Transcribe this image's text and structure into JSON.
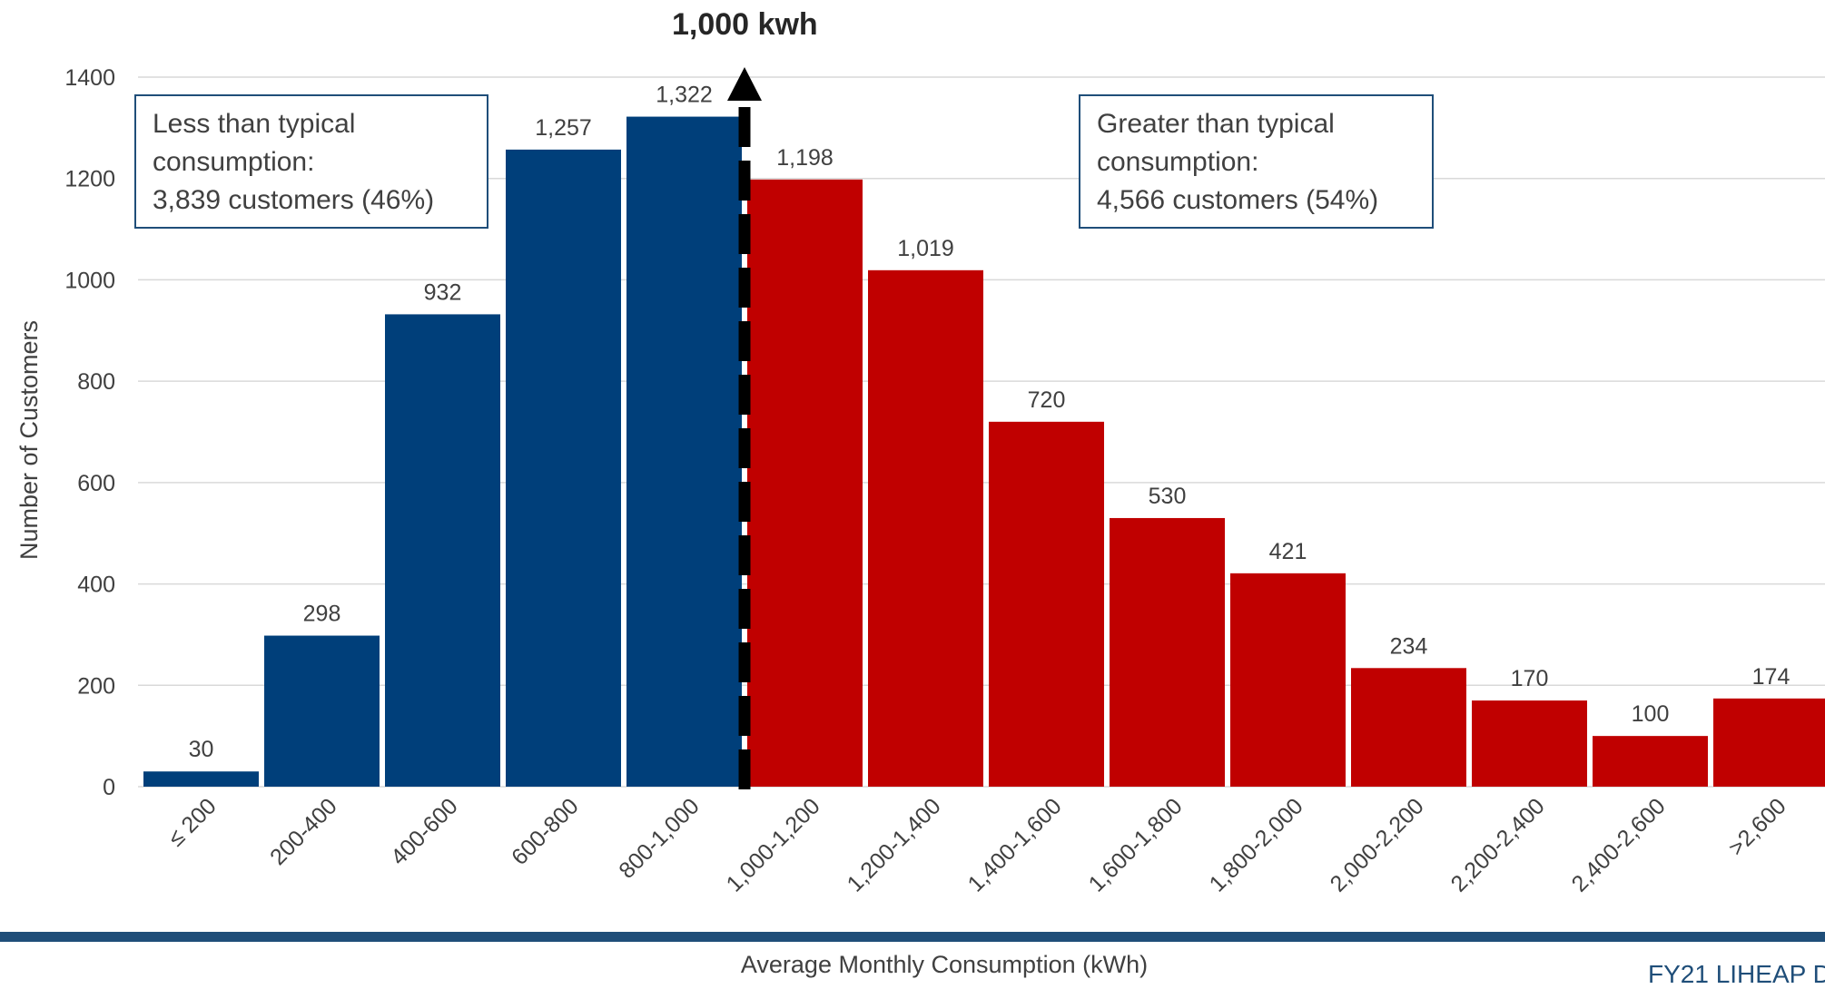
{
  "chart_data": {
    "type": "bar",
    "title": "",
    "xlabel": "Average Monthly Consumption (kWh)",
    "ylabel": "Number of Customers",
    "ylim": [
      0,
      1400
    ],
    "yticks": [
      "0",
      "200",
      "400",
      "600",
      "800",
      "1000",
      "1200",
      "1400"
    ],
    "grid": true,
    "categories": [
      "≤ 200",
      "200-400",
      "400-600",
      "600-800",
      "800-1,000",
      "1,000-1,200",
      "1,200-1,400",
      "1,400-1,600",
      "1,600-1,800",
      "1,800-2,000",
      "2,000-2,200",
      "2,200-2,400",
      "2,400-2,600",
      ">2,600"
    ],
    "values": [
      30,
      298,
      932,
      1257,
      1322,
      1198,
      1019,
      720,
      530,
      421,
      234,
      170,
      100,
      174
    ],
    "data_labels": [
      "30",
      "298",
      "932",
      "1,257",
      "1,322",
      "1,198",
      "1,019",
      "720",
      "530",
      "421",
      "234",
      "170",
      "100",
      "174"
    ],
    "colors": {
      "below": "#003f7a",
      "above": "#c00000"
    },
    "below_count": 5,
    "marker": {
      "label": "1,000 kwh",
      "style": "dashed vertical arrow"
    },
    "annotations": {
      "left": [
        "Less than typical",
        "consumption:",
        "3,839 customers (46%)"
      ],
      "right": [
        "Greater than typical",
        "consumption:",
        "4,566 customers (54%)"
      ]
    }
  },
  "footer": {
    "text": "FY21 LIHEAP D"
  }
}
